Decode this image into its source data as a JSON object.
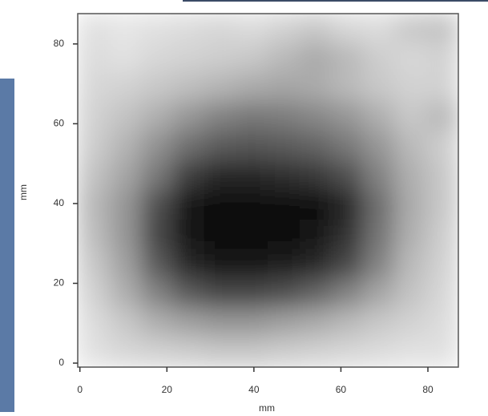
{
  "chart_data": {
    "type": "heatmap",
    "xlabel": "mm",
    "ylabel": "mm",
    "xlim": [
      -0.5,
      87
    ],
    "ylim": [
      -1,
      87.6
    ],
    "xticks": [
      0,
      20,
      40,
      60,
      80
    ],
    "yticks": [
      0,
      20,
      40,
      60,
      80
    ],
    "colormap": "gray",
    "zlim": [
      0,
      255
    ],
    "z": [
      [
        225,
        230,
        225,
        220,
        215,
        220,
        210,
        200,
        215,
        220,
        200,
        195
      ],
      [
        220,
        225,
        215,
        210,
        205,
        200,
        185,
        170,
        185,
        205,
        215,
        210
      ],
      [
        215,
        210,
        200,
        190,
        180,
        170,
        165,
        170,
        185,
        200,
        210,
        210
      ],
      [
        210,
        195,
        175,
        150,
        130,
        120,
        125,
        135,
        150,
        175,
        200,
        185
      ],
      [
        205,
        180,
        145,
        110,
        90,
        85,
        90,
        100,
        120,
        150,
        185,
        205
      ],
      [
        195,
        165,
        120,
        60,
        40,
        40,
        45,
        55,
        80,
        130,
        175,
        200
      ],
      [
        185,
        150,
        80,
        20,
        10,
        10,
        10,
        15,
        40,
        110,
        170,
        200
      ],
      [
        190,
        150,
        70,
        20,
        10,
        10,
        10,
        20,
        50,
        115,
        175,
        205
      ],
      [
        200,
        160,
        90,
        40,
        25,
        25,
        30,
        40,
        70,
        130,
        185,
        210
      ],
      [
        210,
        175,
        130,
        90,
        70,
        70,
        80,
        100,
        130,
        165,
        195,
        215
      ],
      [
        220,
        200,
        175,
        160,
        150,
        150,
        160,
        170,
        185,
        200,
        210,
        220
      ],
      [
        225,
        215,
        210,
        205,
        200,
        200,
        205,
        210,
        215,
        220,
        225,
        225
      ]
    ]
  }
}
